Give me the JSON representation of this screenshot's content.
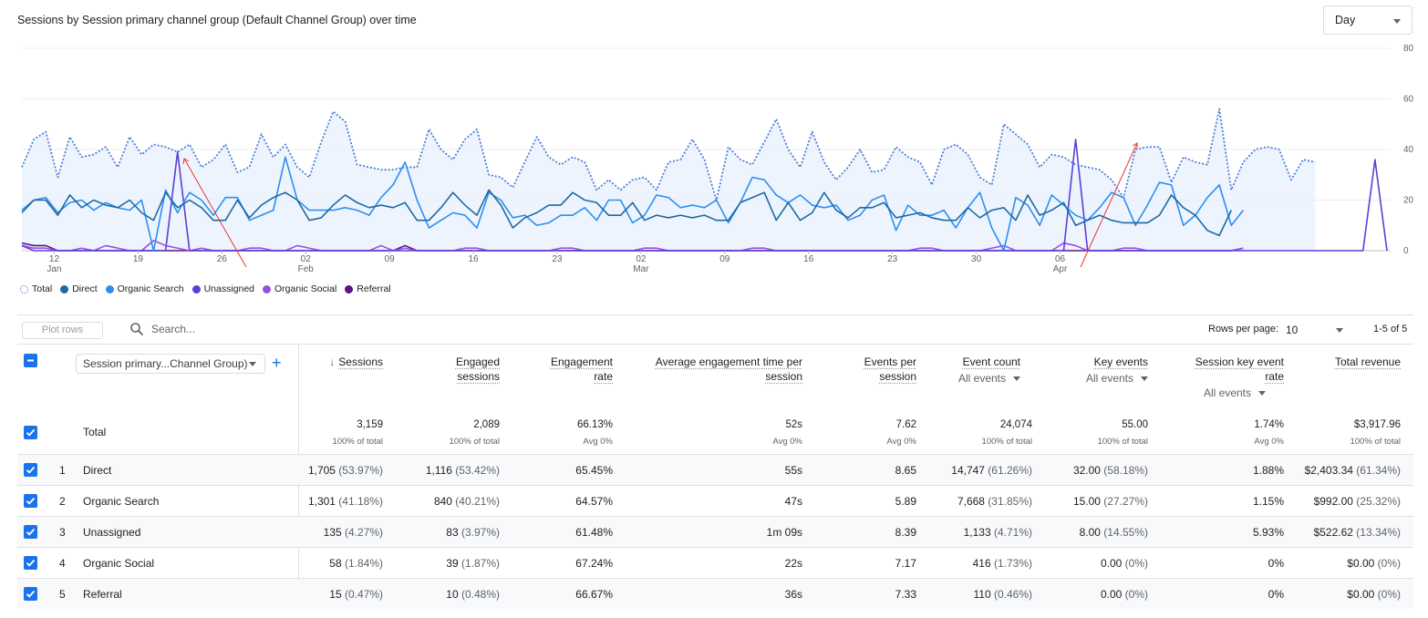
{
  "chart": {
    "title": "Sessions by Session primary channel group (Default Channel Group) over time",
    "granularity": "Day"
  },
  "chart_data": {
    "type": "line",
    "ylim": [
      0,
      80
    ],
    "yticks": [
      0,
      20,
      40,
      60,
      80
    ],
    "x_ticks": [
      {
        "day": 12,
        "top": "12",
        "bottom": "Jan"
      },
      {
        "day": 19,
        "top": "19",
        "bottom": ""
      },
      {
        "day": 26,
        "top": "26",
        "bottom": ""
      },
      {
        "day": 33,
        "top": "02",
        "bottom": "Feb"
      },
      {
        "day": 40,
        "top": "09",
        "bottom": ""
      },
      {
        "day": 47,
        "top": "16",
        "bottom": ""
      },
      {
        "day": 54,
        "top": "23",
        "bottom": ""
      },
      {
        "day": 61,
        "top": "02",
        "bottom": "Mar"
      },
      {
        "day": 68,
        "top": "09",
        "bottom": ""
      },
      {
        "day": 75,
        "top": "16",
        "bottom": ""
      },
      {
        "day": 82,
        "top": "23",
        "bottom": ""
      },
      {
        "day": 89,
        "top": "30",
        "bottom": ""
      },
      {
        "day": 96,
        "top": "06",
        "bottom": "Apr"
      }
    ],
    "series": [
      {
        "name": "Total",
        "color": "#4a7fd6",
        "style": "dotted",
        "values": [
          33,
          44,
          47,
          29,
          45,
          37,
          38,
          41,
          33,
          45,
          38,
          42,
          41,
          39,
          42,
          33,
          36,
          42,
          31,
          33,
          46,
          37,
          42,
          33,
          29,
          43,
          55,
          51,
          34,
          33,
          32,
          32,
          33,
          33,
          48,
          40,
          36,
          44,
          48,
          30,
          29,
          25,
          35,
          45,
          37,
          34,
          37,
          35,
          24,
          28,
          24,
          28,
          29,
          24,
          35,
          36,
          44,
          36,
          20,
          41,
          36,
          34,
          43,
          52,
          40,
          33,
          47,
          35,
          28,
          33,
          40,
          31,
          32,
          41,
          37,
          35,
          26,
          40,
          42,
          38,
          29,
          26,
          50,
          46,
          42,
          33,
          38,
          37,
          34,
          33,
          32,
          28,
          21,
          40,
          41,
          41,
          27,
          37,
          35,
          34,
          56,
          24,
          35,
          40,
          41,
          40,
          28,
          36,
          35
        ]
      },
      {
        "name": "Direct",
        "color": "#1c6aa3",
        "style": "solid",
        "values": [
          15,
          20,
          20,
          14,
          22,
          17,
          20,
          18,
          17,
          20,
          15,
          12,
          23,
          17,
          20,
          17,
          12,
          12,
          20,
          13,
          18,
          21,
          23,
          20,
          12,
          13,
          18,
          22,
          19,
          17,
          18,
          17,
          19,
          12,
          12,
          17,
          23,
          18,
          14,
          24,
          18,
          9,
          13,
          15,
          18,
          18,
          23,
          20,
          19,
          14,
          14,
          19,
          12,
          14,
          13,
          14,
          13,
          14,
          12,
          12,
          19,
          21,
          23,
          12,
          19,
          12,
          15,
          23,
          16,
          13,
          17,
          17,
          19,
          13,
          14,
          15,
          13,
          12,
          12,
          17,
          13,
          16,
          17,
          12,
          22,
          14,
          16,
          19,
          10,
          12,
          14,
          12,
          11,
          11,
          11,
          14,
          22,
          17,
          14,
          8,
          6,
          16
        ]
      },
      {
        "name": "Organic Search",
        "color": "#2c8ff2",
        "style": "solid",
        "values": [
          16,
          20,
          21,
          15,
          19,
          20,
          16,
          19,
          17,
          16,
          20,
          0,
          24,
          15,
          23,
          20,
          14,
          21,
          21,
          12,
          14,
          16,
          37,
          20,
          16,
          16,
          16,
          17,
          16,
          14,
          21,
          26,
          35,
          20,
          9,
          12,
          15,
          14,
          9,
          23,
          20,
          13,
          14,
          10,
          11,
          14,
          14,
          17,
          12,
          20,
          20,
          11,
          14,
          22,
          21,
          17,
          18,
          17,
          20,
          11,
          19,
          29,
          28,
          22,
          19,
          22,
          18,
          17,
          18,
          12,
          14,
          20,
          22,
          8,
          18,
          14,
          14,
          16,
          9,
          17,
          23,
          9,
          0,
          21,
          18,
          10,
          22,
          18,
          14,
          12,
          17,
          23,
          21,
          10,
          18,
          27,
          26,
          10,
          14,
          21,
          26,
          10,
          16
        ]
      },
      {
        "name": "Unassigned",
        "color": "#5a3fd8",
        "style": "solid",
        "values": [
          2,
          0,
          0,
          0,
          0,
          0,
          0,
          0,
          0,
          0,
          0,
          0,
          0,
          39,
          0,
          0,
          0,
          0,
          0,
          0,
          0,
          0,
          0,
          0,
          0,
          0,
          0,
          0,
          0,
          0,
          0,
          0,
          0,
          0,
          0,
          0,
          0,
          0,
          0,
          0,
          0,
          0,
          0,
          0,
          0,
          0,
          0,
          0,
          0,
          0,
          0,
          0,
          0,
          0,
          0,
          0,
          0,
          0,
          0,
          0,
          0,
          0,
          0,
          0,
          0,
          0,
          0,
          0,
          0,
          0,
          0,
          0,
          0,
          0,
          0,
          0,
          0,
          0,
          0,
          0,
          0,
          0,
          0,
          0,
          0,
          0,
          0,
          0,
          44,
          0,
          0,
          0,
          0,
          0,
          0,
          0,
          0,
          0,
          0,
          0,
          0,
          0,
          0,
          0,
          0,
          0,
          0,
          0,
          0,
          0,
          0,
          0,
          0,
          36,
          0
        ]
      },
      {
        "name": "Organic Social",
        "color": "#9b4fe0",
        "style": "solid",
        "values": [
          2,
          1,
          1,
          0,
          0,
          1,
          0,
          2,
          1,
          0,
          0,
          4,
          2,
          1,
          0,
          1,
          0,
          0,
          0,
          1,
          1,
          0,
          0,
          2,
          1,
          0,
          0,
          0,
          0,
          0,
          2,
          0,
          1,
          0,
          0,
          0,
          0,
          1,
          1,
          0,
          0,
          0,
          0,
          0,
          0,
          1,
          1,
          0,
          0,
          0,
          0,
          0,
          1,
          1,
          0,
          0,
          0,
          0,
          0,
          0,
          0,
          1,
          1,
          0,
          0,
          0,
          0,
          0,
          0,
          0,
          0,
          0,
          0,
          0,
          0,
          1,
          1,
          0,
          0,
          0,
          0,
          1,
          2,
          0,
          0,
          0,
          0,
          3,
          2,
          0,
          0,
          0,
          1,
          1,
          0,
          0,
          0,
          0,
          0,
          0,
          0,
          0,
          1
        ]
      },
      {
        "name": "Referral",
        "color": "#5a1580",
        "style": "solid",
        "values": [
          3,
          2,
          2,
          0,
          0,
          0,
          0,
          0,
          0,
          0,
          0,
          0,
          0,
          0,
          0,
          0,
          0,
          0,
          0,
          0,
          0,
          0,
          0,
          0,
          0,
          0,
          0,
          0,
          0,
          0,
          0,
          0,
          2,
          0,
          0,
          0,
          0,
          0,
          0,
          0,
          0,
          0,
          0,
          0,
          0,
          0,
          0,
          0,
          0,
          0,
          0,
          0,
          0,
          0,
          0,
          0,
          0,
          0,
          0,
          0,
          0,
          0,
          0,
          0,
          0,
          0,
          0,
          0,
          0,
          0,
          0,
          0,
          0,
          0,
          0,
          0,
          0,
          0,
          0,
          0,
          0,
          0,
          0,
          0,
          0,
          0,
          0,
          0,
          0,
          0,
          0,
          0,
          0,
          0,
          0,
          0,
          0,
          0,
          0,
          0,
          0,
          0,
          1
        ]
      }
    ]
  },
  "legend": {
    "items": [
      {
        "label": "Total",
        "color": "#4a7fd6",
        "dotted": true
      },
      {
        "label": "Direct",
        "color": "#1c6aa3"
      },
      {
        "label": "Organic Search",
        "color": "#2c8ff2"
      },
      {
        "label": "Unassigned",
        "color": "#5a3fd8"
      },
      {
        "label": "Organic Social",
        "color": "#9b4fe0"
      },
      {
        "label": "Referral",
        "color": "#5a1580"
      }
    ]
  },
  "toolbar": {
    "plot_rows": "Plot rows",
    "search_placeholder": "Search...",
    "rows_per_page_label": "Rows per page:",
    "rows_per_page": "10",
    "page_info": "1-5 of 5"
  },
  "table": {
    "dimension_label": "Session primary...Channel Group)",
    "headers": {
      "sessions": "Sessions",
      "engaged1": "Engaged",
      "engaged2": "sessions",
      "engrate1": "Engagement",
      "engrate2": "rate",
      "avgtime1": "Average engagement time per",
      "avgtime2": "session",
      "eps1": "Events per",
      "eps2": "session",
      "eventcount": "Event count",
      "eventcount_sub": "All events",
      "keyevents": "Key events",
      "keyevents_sub": "All events",
      "skr1": "Session key event",
      "skr2": "rate",
      "skr_sub": "All events",
      "revenue": "Total revenue"
    },
    "total": {
      "label": "Total",
      "sessions": "3,159",
      "sessions_sub": "100% of total",
      "engaged": "2,089",
      "engaged_sub": "100% of total",
      "engrate": "66.13%",
      "engrate_sub": "Avg 0%",
      "avgtime": "52s",
      "avgtime_sub": "Avg 0%",
      "eps": "7.62",
      "eps_sub": "Avg 0%",
      "eventcount": "24,074",
      "eventcount_sub": "100% of total",
      "keyevents": "55.00",
      "keyevents_sub": "100% of total",
      "skr": "1.74%",
      "skr_sub": "Avg 0%",
      "revenue": "$3,917.96",
      "revenue_sub": "100% of total"
    },
    "rows": [
      {
        "num": "1",
        "name": "Direct",
        "sessions": "1,705",
        "sessions_pct": "(53.97%)",
        "engaged": "1,116",
        "engaged_pct": "(53.42%)",
        "engrate": "65.45%",
        "avgtime": "55s",
        "eps": "8.65",
        "eventcount": "14,747",
        "eventcount_pct": "(61.26%)",
        "keyevents": "32.00",
        "keyevents_pct": "(58.18%)",
        "skr": "1.88%",
        "revenue": "$2,403.34",
        "revenue_pct": "(61.34%)"
      },
      {
        "num": "2",
        "name": "Organic Search",
        "sessions": "1,301",
        "sessions_pct": "(41.18%)",
        "engaged": "840",
        "engaged_pct": "(40.21%)",
        "engrate": "64.57%",
        "avgtime": "47s",
        "eps": "5.89",
        "eventcount": "7,668",
        "eventcount_pct": "(31.85%)",
        "keyevents": "15.00",
        "keyevents_pct": "(27.27%)",
        "skr": "1.15%",
        "revenue": "$992.00",
        "revenue_pct": "(25.32%)"
      },
      {
        "num": "3",
        "name": "Unassigned",
        "sessions": "135",
        "sessions_pct": "(4.27%)",
        "engaged": "83",
        "engaged_pct": "(3.97%)",
        "engrate": "61.48%",
        "avgtime": "1m 09s",
        "eps": "8.39",
        "eventcount": "1,133",
        "eventcount_pct": "(4.71%)",
        "keyevents": "8.00",
        "keyevents_pct": "(14.55%)",
        "skr": "5.93%",
        "revenue": "$522.62",
        "revenue_pct": "(13.34%)"
      },
      {
        "num": "4",
        "name": "Organic Social",
        "sessions": "58",
        "sessions_pct": "(1.84%)",
        "engaged": "39",
        "engaged_pct": "(1.87%)",
        "engrate": "67.24%",
        "avgtime": "22s",
        "eps": "7.17",
        "eventcount": "416",
        "eventcount_pct": "(1.73%)",
        "keyevents": "0.00",
        "keyevents_pct": "(0%)",
        "skr": "0%",
        "revenue": "$0.00",
        "revenue_pct": "(0%)"
      },
      {
        "num": "5",
        "name": "Referral",
        "sessions": "15",
        "sessions_pct": "(0.47%)",
        "engaged": "10",
        "engaged_pct": "(0.48%)",
        "engrate": "66.67%",
        "avgtime": "36s",
        "eps": "7.33",
        "eventcount": "110",
        "eventcount_pct": "(0.46%)",
        "keyevents": "0.00",
        "keyevents_pct": "(0%)",
        "skr": "0%",
        "revenue": "$0.00",
        "revenue_pct": "(0%)"
      }
    ]
  }
}
